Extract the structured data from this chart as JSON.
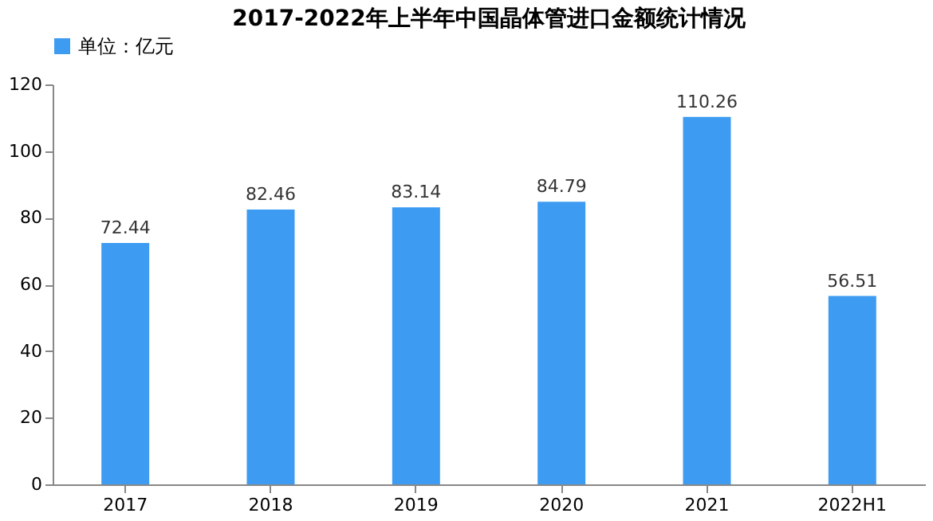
{
  "chart_data": {
    "type": "bar",
    "title": "2017-2022年上半年中国晶体管进口金额统计情况",
    "categories": [
      "2017",
      "2018",
      "2019",
      "2020",
      "2021",
      "2022H1"
    ],
    "series": [
      {
        "name": "单位：亿元",
        "color": "#3d9cf2",
        "values": [
          72.44,
          82.46,
          83.14,
          84.79,
          110.26,
          56.51
        ]
      }
    ],
    "ylim": [
      0,
      120
    ],
    "yticks": [
      0,
      20,
      40,
      60,
      80,
      100,
      120
    ],
    "grid": false,
    "legend": "top",
    "data_labels": true
  }
}
